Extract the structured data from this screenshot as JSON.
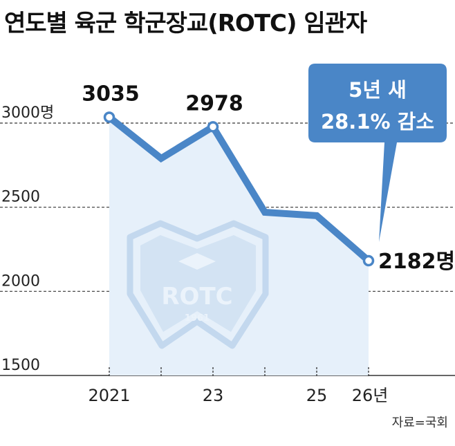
{
  "title": "연도별 육군 학군장교(ROTC) 임관자",
  "source": "자료=국회",
  "watermark": {
    "text": "ROTC",
    "year": "1961"
  },
  "callout": {
    "line1": "5년 새",
    "line2": "28.1% 감소",
    "color": "#4a86c7"
  },
  "colors": {
    "line": "#4a86c7",
    "area": "#e6f0fa",
    "grid": "#333333"
  },
  "chart_data": {
    "type": "line",
    "x": [
      2021,
      2022,
      2023,
      2024,
      2025,
      2026
    ],
    "x_tick_labels": [
      "2021",
      "",
      "23",
      "",
      "25",
      "26년"
    ],
    "series": [
      {
        "values": [
          3035,
          2790,
          2978,
          2470,
          2450,
          2182
        ]
      }
    ],
    "data_labels": [
      {
        "index": 0,
        "text": "3035"
      },
      {
        "index": 2,
        "text": "2978"
      },
      {
        "index": 5,
        "text": "2182명"
      }
    ],
    "y_ticks": [
      1500,
      2000,
      2500,
      3000
    ],
    "y_tick_labels": [
      "1500",
      "2000",
      "2500",
      "3000명"
    ],
    "ylim": [
      1500,
      3000
    ],
    "grid": true
  }
}
